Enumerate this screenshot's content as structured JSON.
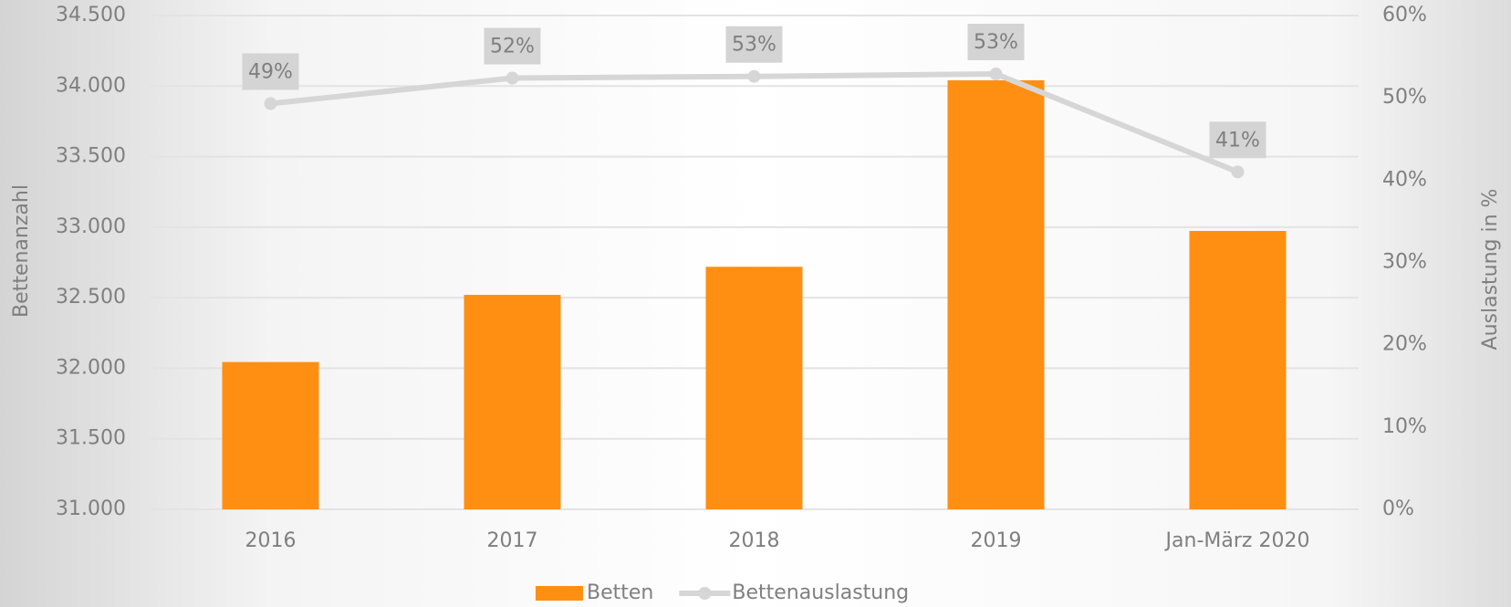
{
  "chart_data": {
    "type": "bar_line",
    "categories": [
      "2016",
      "2017",
      "2018",
      "2019",
      "Jan-März 2020"
    ],
    "series": [
      {
        "name": "Betten",
        "type": "bar",
        "color": "#fe8f12",
        "values": [
          32044,
          32520,
          32719,
          34041,
          32973
        ]
      },
      {
        "name": "Bettenauslastung",
        "type": "line",
        "axis": "y2",
        "color": "#d6d6d6",
        "values": [
          49.3,
          52.4,
          52.6,
          52.9,
          41.0
        ],
        "value_labels": [
          "49%",
          "52%",
          "53%",
          "53%",
          "41%"
        ]
      }
    ],
    "ylabel": "Bettenanzahl",
    "y2label": "Auslastung in %",
    "ylim": [
      31000,
      34500
    ],
    "yticks": [
      {
        "value": 31000,
        "label": "31.000"
      },
      {
        "value": 31500,
        "label": "31.500"
      },
      {
        "value": 32000,
        "label": "32.000"
      },
      {
        "value": 32500,
        "label": "32.500"
      },
      {
        "value": 33000,
        "label": "33.000"
      },
      {
        "value": 33500,
        "label": "33.500"
      },
      {
        "value": 34000,
        "label": "34.000"
      },
      {
        "value": 34500,
        "label": "34.500"
      }
    ],
    "y2lim": [
      0,
      60
    ],
    "y2ticks": [
      {
        "value": 0,
        "label": "0%"
      },
      {
        "value": 10,
        "label": "10%"
      },
      {
        "value": 20,
        "label": "20%"
      },
      {
        "value": 30,
        "label": "30%"
      },
      {
        "value": 40,
        "label": "40%"
      },
      {
        "value": 50,
        "label": "50%"
      },
      {
        "value": 60,
        "label": "60%"
      }
    ],
    "grid": true,
    "legend": "bottom"
  }
}
